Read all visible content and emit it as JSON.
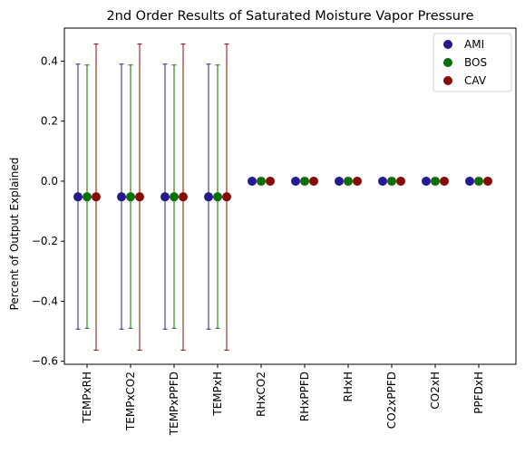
{
  "chart_data": {
    "type": "scatter",
    "title": "2nd Order Results of Saturated Moisture Vapor Pressure",
    "xlabel": "",
    "ylabel": "Percent of Output Explained",
    "categories": [
      "TEMPxRH",
      "TEMPxCO2",
      "TEMPxPPFD",
      "TEMPxH",
      "RHxCO2",
      "RHxPPFD",
      "RHxH",
      "CO2xPPFD",
      "CO2xH",
      "PPFDxH"
    ],
    "ylim": [
      -0.61,
      0.51
    ],
    "yticks": [
      -0.6,
      -0.4,
      -0.2,
      0.0,
      0.2,
      0.4
    ],
    "ytick_labels": [
      "−0.6",
      "−0.4",
      "−0.2",
      "0.0",
      "0.2",
      "0.4"
    ],
    "grid": false,
    "legend_position": "top-right",
    "series": [
      {
        "name": "AMI",
        "color": "#27188f",
        "values": [
          -0.052,
          -0.052,
          -0.052,
          -0.052,
          0.0,
          0.0,
          0.0,
          0.0,
          0.0,
          0.0
        ],
        "error_low": [
          -0.493,
          -0.493,
          -0.493,
          -0.493,
          null,
          null,
          null,
          null,
          null,
          null
        ],
        "error_high": [
          0.39,
          0.39,
          0.39,
          0.39,
          null,
          null,
          null,
          null,
          null,
          null
        ]
      },
      {
        "name": "BOS",
        "color": "#0a6e0a",
        "values": [
          -0.052,
          -0.052,
          -0.052,
          -0.052,
          0.0,
          0.0,
          0.0,
          0.0,
          0.0,
          0.0
        ],
        "error_low": [
          -0.49,
          -0.49,
          -0.49,
          -0.49,
          null,
          null,
          null,
          null,
          null,
          null
        ],
        "error_high": [
          0.387,
          0.387,
          0.387,
          0.387,
          null,
          null,
          null,
          null,
          null,
          null
        ]
      },
      {
        "name": "CAV",
        "color": "#8a0a0a",
        "values": [
          -0.052,
          -0.052,
          -0.052,
          -0.052,
          0.0,
          0.0,
          0.0,
          0.0,
          0.0,
          0.0
        ],
        "error_low": [
          -0.563,
          -0.563,
          -0.563,
          -0.563,
          null,
          null,
          null,
          null,
          null,
          null
        ],
        "error_high": [
          0.457,
          0.457,
          0.457,
          0.457,
          null,
          null,
          null,
          null,
          null,
          null
        ]
      }
    ]
  }
}
